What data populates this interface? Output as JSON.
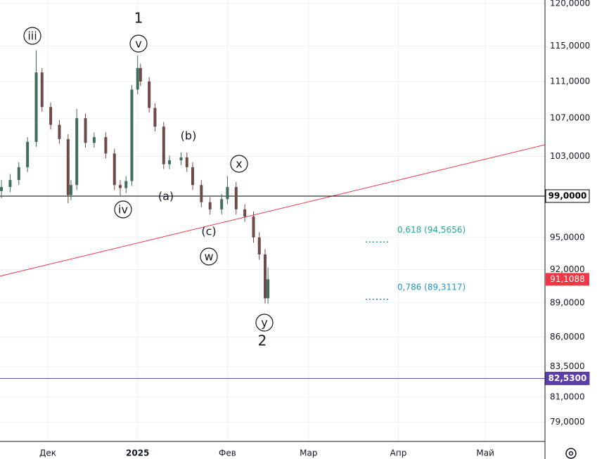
{
  "chart_data": {
    "type": "candlestick",
    "log_scale": true,
    "grid": true,
    "up_color": "#3f6e5c",
    "down_color": "#6e4a48",
    "xlim": [
      -16.5,
      171.6
    ],
    "ylim": [
      77.5,
      120.4
    ],
    "xticks": [
      {
        "value": 0,
        "label": "Дек"
      },
      {
        "value": 31,
        "label": "2025"
      },
      {
        "value": 62,
        "label": "Фев"
      },
      {
        "value": 90,
        "label": "Мар"
      },
      {
        "value": 121,
        "label": "Апр"
      },
      {
        "value": 151,
        "label": "Май"
      }
    ],
    "yticks": [
      {
        "value": 120,
        "label": "120,0000"
      },
      {
        "value": 115,
        "label": "115,0000"
      },
      {
        "value": 111,
        "label": "111,0000"
      },
      {
        "value": 107,
        "label": "107,0000"
      },
      {
        "value": 103,
        "label": "103,0000"
      },
      {
        "value": 95,
        "label": "95,0000"
      },
      {
        "value": 92,
        "label": "92,0000"
      },
      {
        "value": 89,
        "label": "89,0000"
      },
      {
        "value": 86,
        "label": "86,0000"
      },
      {
        "value": 83.5,
        "label": "83,5000"
      },
      {
        "value": 81,
        "label": "81,0000"
      },
      {
        "value": 79,
        "label": "79,0000"
      }
    ],
    "x": [
      -16,
      -13,
      -10,
      -7,
      -4,
      -2,
      1,
      4,
      7,
      8,
      10,
      13,
      16,
      20,
      23,
      25,
      27,
      29,
      31,
      32,
      35,
      37,
      40,
      42,
      46,
      48,
      50,
      53,
      56,
      60,
      62,
      65,
      68,
      71,
      73,
      75,
      76
    ],
    "open": [
      99.5,
      99.9,
      100.6,
      101.9,
      104.5,
      112.0,
      108.2,
      106.3,
      104.8,
      99.1,
      100.1,
      107.0,
      104.4,
      105.0,
      103.3,
      100.1,
      99.8,
      100.5,
      110.1,
      112.5,
      111.0,
      108.1,
      106.1,
      102.2,
      102.6,
      102.9,
      101.9,
      100.1,
      98.4,
      97.7,
      98.7,
      99.9,
      97.7,
      97.0,
      95.0,
      93.4,
      89.4
    ],
    "high": [
      100.6,
      101.2,
      102.4,
      105.0,
      114.5,
      112.5,
      108.7,
      106.8,
      105.3,
      100.6,
      108.0,
      107.5,
      105.5,
      105.5,
      103.8,
      100.6,
      101.0,
      110.6,
      113.9,
      113.0,
      111.5,
      108.6,
      106.6,
      103.1,
      103.4,
      103.4,
      102.4,
      100.6,
      98.9,
      99.2,
      101.0,
      100.4,
      98.2,
      97.5,
      95.5,
      93.9,
      92.2
    ],
    "low": [
      98.8,
      99.4,
      100.1,
      101.4,
      104.0,
      107.7,
      105.8,
      104.3,
      98.3,
      98.6,
      99.6,
      103.9,
      103.9,
      102.8,
      99.6,
      99.0,
      99.3,
      100.0,
      109.6,
      110.5,
      107.6,
      105.6,
      101.7,
      101.7,
      102.1,
      101.4,
      99.6,
      97.9,
      97.2,
      97.2,
      98.2,
      97.2,
      96.5,
      94.5,
      92.9,
      88.95,
      88.9
    ],
    "close": [
      99.9,
      100.6,
      101.9,
      104.5,
      112.0,
      108.2,
      106.3,
      104.8,
      99.1,
      100.1,
      107.0,
      104.4,
      105.0,
      103.3,
      100.1,
      99.8,
      100.5,
      110.1,
      112.5,
      111.0,
      108.1,
      106.1,
      102.2,
      102.6,
      102.9,
      101.9,
      100.1,
      98.4,
      97.7,
      98.7,
      99.9,
      97.7,
      97.0,
      95.0,
      93.4,
      89.4,
      91.1088
    ],
    "hlines": [
      {
        "value": 99,
        "label": "99,0000",
        "color": "#000000"
      },
      {
        "value": 82.53,
        "label": "82,5300",
        "color": "#5b3ea8"
      }
    ],
    "last_price": {
      "value": 91.1088,
      "label": "91,1088",
      "color": "#f23645"
    },
    "trendline": {
      "x": [
        -16.5,
        171.6
      ],
      "y": [
        91.4,
        104.2
      ],
      "color": "#f23645"
    },
    "fib_levels": [
      {
        "price": 94.5656,
        "label": "0,618 (94,5656)",
        "color": "#22ab94"
      },
      {
        "price": 89.3117,
        "label": "0,786 (89,3117)",
        "color": "#2196c9"
      }
    ],
    "annotations": [
      "iii",
      "v",
      "1",
      "(b)",
      "x",
      "iv",
      "(a)",
      "(c)",
      "w",
      "y",
      "2"
    ]
  }
}
